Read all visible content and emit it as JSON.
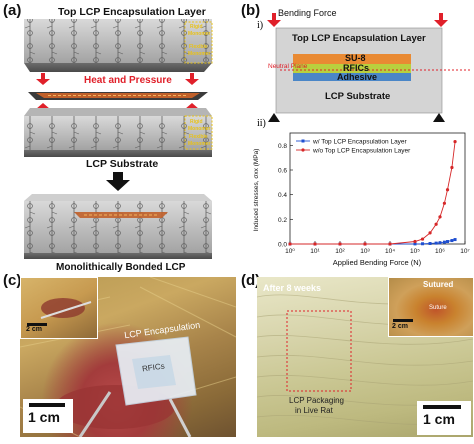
{
  "panels": {
    "a": {
      "letter": "(a)",
      "top_layer_label": "Top LCP Encapsulation Layer",
      "rigid_label": "Rigid",
      "monomer_label": "Monomer",
      "flexible_label": "Flexible",
      "heat_label": "Heat and Pressure",
      "substrate_label": "LCP Substrate",
      "bonded_label": "Monolithically Bonded LCP"
    },
    "b": {
      "letter": "(b)",
      "sub_i": "i)",
      "sub_ii": "ii)",
      "bending_label": "Bending Force",
      "top_layer_label": "Top LCP Encapsulation Layer",
      "su8_label": "SU-8",
      "neutral_label": "Neutral Plane",
      "rfics_label": "RFICs",
      "adhesive_label": "Adhesive",
      "substrate_label": "LCP Substrate"
    },
    "c": {
      "letter": "(c)",
      "encap_label": "LCP Encapsulation",
      "rfics_label": "RFICs",
      "scale_small": "2 cm",
      "scale_large": "1 cm"
    },
    "d": {
      "letter": "(d)",
      "weeks_label": "After 8 weeks",
      "sutured_label": "Sutured",
      "suture_label": "Suture",
      "packaging_line1": "LCP Packaging",
      "packaging_line2": "in Live Rat",
      "scale_small": "2 cm",
      "scale_large": "1 cm"
    }
  },
  "chart_data": {
    "type": "line",
    "xlabel": "Applied Bending Force (N)",
    "ylabel": "Induced stresses, σxx (MPa)",
    "x_scale": "log",
    "xlim": [
      1,
      10000000
    ],
    "x_tick_labels": [
      "10⁰",
      "10¹",
      "10²",
      "10³",
      "10⁴",
      "10⁵",
      "10⁶",
      "10⁷"
    ],
    "ylim": [
      0,
      0.9
    ],
    "y_ticks": [
      0.0,
      0.2,
      0.4,
      0.6,
      0.8
    ],
    "y_tick_labels": [
      "0.0",
      "0.2",
      "0.4",
      "0.6",
      "0.8"
    ],
    "legend_position": "top-left",
    "series": [
      {
        "name": "w/ Top LCP Encapsulation Layer",
        "color": "#1f4fd1",
        "x": [
          1,
          10,
          100,
          1000,
          10000,
          100000,
          200000,
          400000,
          700000,
          1000000,
          1500000,
          2000000,
          3000000,
          4000000
        ],
        "y": [
          0,
          0,
          0,
          0,
          0,
          0.001,
          0.002,
          0.004,
          0.007,
          0.01,
          0.015,
          0.02,
          0.028,
          0.036
        ]
      },
      {
        "name": "w/o Top LCP Encapsulation Layer",
        "color": "#d62728",
        "x": [
          1,
          10,
          100,
          1000,
          10000,
          100000,
          200000,
          400000,
          700000,
          1000000,
          1500000,
          2000000,
          3000000,
          4000000
        ],
        "y": [
          0,
          0,
          0,
          0,
          0,
          0.02,
          0.04,
          0.09,
          0.16,
          0.22,
          0.33,
          0.44,
          0.62,
          0.83
        ]
      }
    ]
  }
}
